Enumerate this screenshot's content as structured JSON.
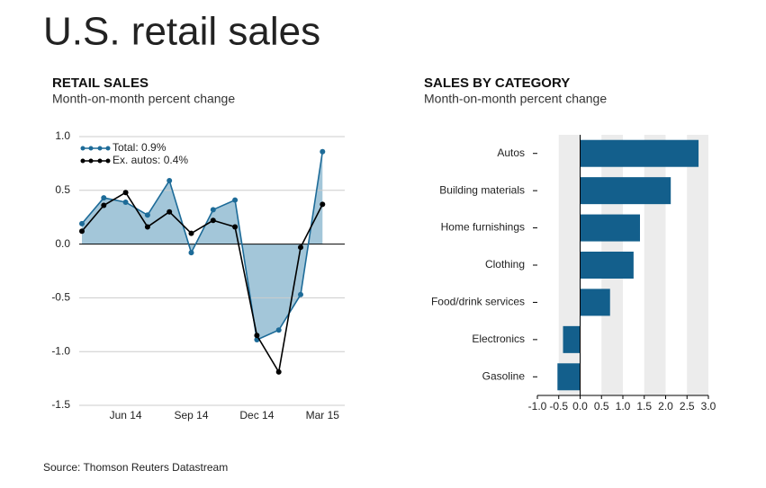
{
  "title": "U.S. retail sales",
  "source": "Source: Thomson Reuters Datastream",
  "chart_data": [
    {
      "type": "line",
      "title": "RETAIL SALES",
      "subtitle": "Month-on-month percent change",
      "categories": [
        null,
        null,
        "Jun 14",
        null,
        null,
        "Sep 14",
        null,
        null,
        "Dec 14",
        null,
        null,
        "Mar 15"
      ],
      "series": [
        {
          "name": "Total: 0.9%",
          "color": "#1d6b98",
          "fill": "#a3c6d9",
          "values": [
            0.19,
            0.43,
            0.39,
            0.27,
            0.59,
            -0.08,
            0.32,
            0.41,
            -0.89,
            -0.8,
            -0.47,
            0.86
          ]
        },
        {
          "name": "Ex. autos: 0.4%",
          "color": "#000000",
          "values": [
            0.12,
            0.36,
            0.48,
            0.16,
            0.3,
            0.1,
            0.22,
            0.16,
            -0.85,
            -1.19,
            -0.03,
            0.37
          ]
        }
      ],
      "ylim": [
        -1.5,
        1.0
      ],
      "yticks": [
        {
          "value": 1.0,
          "label": "1.0"
        },
        0.5,
        {
          "value": 0.0,
          "label": "0.0"
        },
        -0.5,
        {
          "value": -1.0,
          "label": "-1.0"
        },
        -1.5
      ],
      "grid": true,
      "legend": "top-left"
    },
    {
      "type": "hbar",
      "title": "SALES BY CATEGORY",
      "subtitle": "Month-on-month percent change",
      "categories": [
        "Autos",
        "Building materials",
        "Home furnishings",
        "Clothing",
        "Food/drink services",
        "Electronics",
        "Gasoline"
      ],
      "values": [
        2.77,
        2.12,
        1.4,
        1.25,
        0.7,
        -0.4,
        -0.53
      ],
      "color": "#135f8c",
      "xlim": [
        -1.0,
        3.0
      ],
      "xticks": [
        {
          "value": -1.0,
          "label": "-1.0"
        },
        -0.5,
        {
          "value": 0.0,
          "label": "0.0"
        },
        0.5,
        {
          "value": 1.0,
          "label": "1.0"
        },
        1.5,
        {
          "value": 2.0,
          "label": "2.0"
        },
        2.5,
        {
          "value": 3.0,
          "label": "3.0"
        }
      ]
    }
  ]
}
